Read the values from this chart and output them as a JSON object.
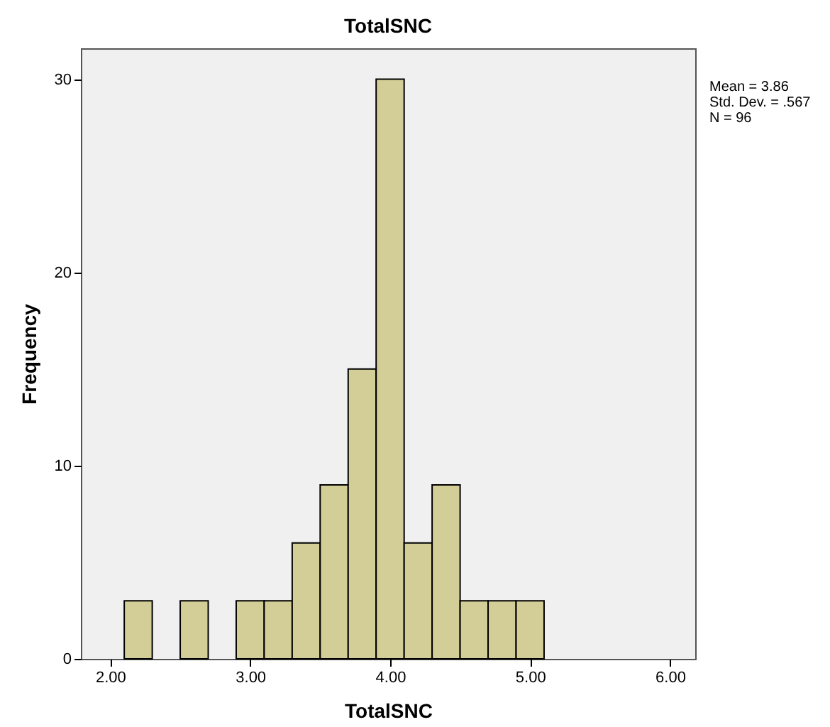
{
  "chart_data": {
    "type": "histogram",
    "title": "TotalSNC",
    "xlabel": "TotalSNC",
    "ylabel": "Frequency",
    "annotations": [
      "Mean = 3.86",
      "Std. Dev. = .567",
      "N = 96"
    ],
    "bins": [
      2.1,
      2.3,
      2.5,
      2.7,
      2.9,
      3.1,
      3.3,
      3.5,
      3.7,
      3.9,
      4.1,
      4.3,
      4.5,
      4.7,
      4.9,
      5.1
    ],
    "values": [
      3,
      0,
      3,
      0,
      3,
      3,
      6,
      9,
      15,
      30,
      6,
      9,
      3,
      3,
      3
    ],
    "color": "#d3ce97",
    "xlim": [
      1.79,
      6.18
    ],
    "xticks": [
      {
        "value": 2,
        "label": "2.00"
      },
      {
        "value": 3,
        "label": "3.00"
      },
      {
        "value": 4,
        "label": "4.00"
      },
      {
        "value": 5,
        "label": "5.00"
      },
      {
        "value": 6,
        "label": "6.00"
      }
    ],
    "ylim": [
      0,
      31.6
    ],
    "yticks": [
      0,
      10,
      20,
      30
    ],
    "grid": false
  }
}
